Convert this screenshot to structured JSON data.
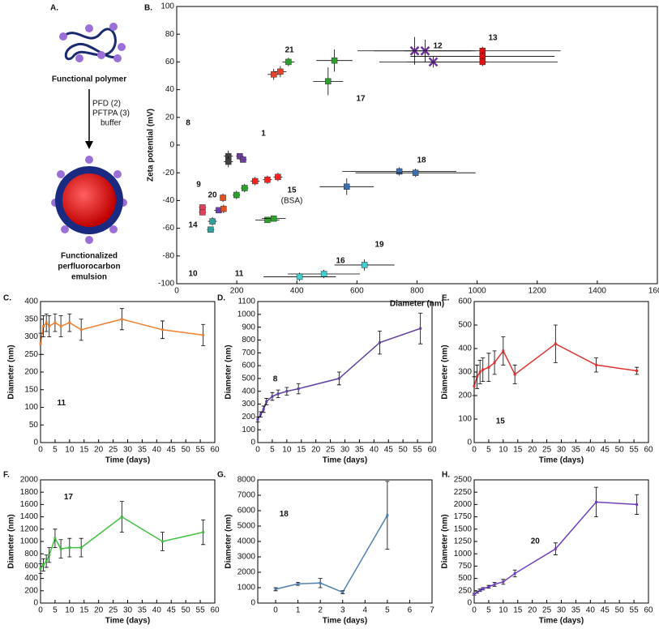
{
  "diagram": {
    "label": "A.",
    "top_text": "Functional polymer",
    "step_lines": [
      "PFD (2)",
      "PFTPA (3)",
      "buffer"
    ],
    "bottom_lines": [
      "Functionalized",
      "perfluorocarbon",
      "emulsion"
    ]
  },
  "chart_data": [
    {
      "type": "scatter",
      "title": "B.",
      "xlabel": "Diameter (nm)",
      "ylabel": "Zeta potential (mV)",
      "xlim": [
        0,
        1600
      ],
      "ylim": [
        -100,
        100
      ],
      "xticks": [
        0,
        200,
        400,
        600,
        800,
        1000,
        1200,
        1400,
        1600
      ],
      "yticks": [
        -100,
        -80,
        -60,
        -40,
        -20,
        0,
        20,
        40,
        60,
        80,
        100
      ],
      "annotations": [
        "(BSA)"
      ],
      "series": [
        {
          "name": "21",
          "color": "#e8402a",
          "marker": "square",
          "x": [
            323,
            345
          ],
          "values": [
            51,
            53
          ],
          "xerr": [
            20,
            20
          ],
          "yerr": [
            4,
            4
          ]
        },
        {
          "name": "12",
          "color": "#7030a0",
          "marker": "x",
          "x": [
            792,
            827,
            854
          ],
          "values": [
            68,
            68,
            60
          ],
          "xerr": [
            190,
            170,
            180
          ],
          "yerr": [
            10,
            8,
            4
          ]
        },
        {
          "name": "13",
          "color": "#e01010",
          "marker": "square",
          "x": [
            1018,
            1018,
            1018
          ],
          "values": [
            68,
            64,
            60
          ],
          "xerr": [
            260,
            240,
            250
          ],
          "yerr": [
            3,
            3,
            3
          ]
        },
        {
          "name": "17",
          "color": "#2ca02c",
          "marker": "square",
          "x": [
            525,
            504,
            372
          ],
          "values": [
            61,
            46,
            60
          ],
          "xerr": [
            60,
            50,
            20
          ],
          "yerr": [
            8,
            10,
            3
          ]
        },
        {
          "name": "8",
          "color": "#404040",
          "marker": "square",
          "x": [
            172,
            172
          ],
          "values": [
            -8,
            -12
          ],
          "xerr": [
            15,
            15
          ],
          "yerr": [
            4,
            4
          ]
        },
        {
          "name": "1",
          "color": "#6a3d9a",
          "marker": "square",
          "x": [
            210,
            221
          ],
          "values": [
            -8,
            -10.5
          ],
          "xerr": [
            12,
            12
          ],
          "yerr": [
            2,
            2
          ]
        },
        {
          "name": "15",
          "color": "#ff2020",
          "marker": "square",
          "x": [
            261,
            302,
            337
          ],
          "values": [
            -26,
            -25,
            -23
          ],
          "xerr": [
            15,
            15,
            15
          ],
          "yerr": [
            3,
            3,
            3
          ]
        },
        {
          "name": "9",
          "color": "#2ca02c",
          "marker": "square",
          "x": [
            226,
            199
          ],
          "values": [
            -31,
            -36
          ],
          "xerr": [
            12,
            12
          ],
          "yerr": [
            3,
            3
          ]
        },
        {
          "name": "18",
          "color": "#3a6fb0",
          "marker": "square",
          "x": [
            741,
            795,
            566
          ],
          "values": [
            -19,
            -20,
            -30
          ],
          "xerr": [
            190,
            200,
            90
          ],
          "yerr": [
            3,
            3,
            6
          ]
        },
        {
          "name": "20",
          "color": "#6a3dc0",
          "marker": "square",
          "x": [
            140
          ],
          "values": [
            -47
          ],
          "xerr": [
            15
          ],
          "yerr": [
            2
          ]
        },
        {
          "name": "14",
          "color": "#e0405a",
          "marker": "square",
          "x": [
            86,
            86
          ],
          "values": [
            -45,
            -48.5
          ],
          "xerr": [
            12,
            12
          ],
          "yerr": [
            2,
            2
          ]
        },
        {
          "name": "10",
          "color": "#30a0a0",
          "marker": "square",
          "x": [
            119,
            113
          ],
          "values": [
            -55,
            -61
          ],
          "xerr": [
            15,
            12
          ],
          "yerr": [
            3,
            2
          ]
        },
        {
          "name": "11",
          "color": "#e05020",
          "marker": "square",
          "x": [
            154,
            156
          ],
          "values": [
            -38,
            -46
          ],
          "xerr": [
            10,
            10
          ],
          "yerr": [
            3,
            3
          ]
        },
        {
          "name": "16",
          "color": "#2ca02c",
          "marker": "square",
          "x": [
            302,
            323
          ],
          "values": [
            -54,
            -53
          ],
          "xerr": [
            40,
            40
          ],
          "yerr": [
            2,
            2
          ]
        },
        {
          "name": "19",
          "color": "#40d0d0",
          "marker": "square",
          "x": [
            625,
            490,
            409
          ],
          "values": [
            -86.5,
            -93,
            -95
          ],
          "xerr": [
            100,
            120,
            120
          ],
          "yerr": [
            4,
            3,
            3
          ]
        }
      ]
    },
    {
      "type": "line",
      "title": "C.",
      "xlabel": "Time (days)",
      "ylabel": "Diameter (nm)",
      "xlim": [
        0,
        60
      ],
      "ylim": [
        0,
        400
      ],
      "xticks": [
        0,
        5,
        10,
        15,
        20,
        25,
        30,
        35,
        40,
        45,
        50,
        55,
        60
      ],
      "yticks": [
        0,
        50,
        100,
        150,
        200,
        250,
        300,
        350,
        400
      ],
      "color": "#f07f30",
      "annotations": [
        "11"
      ],
      "x": [
        0,
        1,
        2,
        3,
        5,
        7,
        10,
        14,
        28,
        42,
        56
      ],
      "values": [
        280,
        330,
        340,
        330,
        340,
        330,
        340,
        320,
        350,
        320,
        305
      ],
      "errors": [
        30,
        30,
        25,
        30,
        25,
        30,
        25,
        30,
        30,
        25,
        30
      ]
    },
    {
      "type": "line",
      "title": "D.",
      "xlabel": "Time (days)",
      "ylabel": "Diameter (nm)",
      "xlim": [
        0,
        60
      ],
      "ylim": [
        0,
        1100
      ],
      "xticks": [
        0,
        5,
        10,
        15,
        20,
        25,
        30,
        35,
        40,
        45,
        50,
        55,
        60
      ],
      "yticks": [
        0,
        100,
        200,
        300,
        400,
        500,
        600,
        700,
        800,
        900,
        1000,
        1100
      ],
      "color": "#6040a0",
      "annotations": [
        "8"
      ],
      "x": [
        0,
        1,
        2,
        3,
        5,
        7,
        10,
        14,
        28,
        42,
        56
      ],
      "values": [
        180,
        220,
        260,
        320,
        360,
        380,
        400,
        420,
        500,
        780,
        890
      ],
      "errors": [
        20,
        20,
        25,
        25,
        30,
        30,
        30,
        40,
        50,
        90,
        120
      ]
    },
    {
      "type": "line",
      "title": "E.",
      "xlabel": "Time (days)",
      "ylabel": "Diameter (nm)",
      "xlim": [
        0,
        60
      ],
      "ylim": [
        0,
        600
      ],
      "xticks": [
        0,
        5,
        10,
        15,
        20,
        25,
        30,
        35,
        40,
        45,
        50,
        55,
        60
      ],
      "yticks": [
        0,
        100,
        200,
        300,
        400,
        500,
        600
      ],
      "color": "#e03030",
      "annotations": [
        "15"
      ],
      "x": [
        0,
        1,
        2,
        3,
        5,
        7,
        10,
        14,
        28,
        42,
        56
      ],
      "values": [
        240,
        280,
        300,
        310,
        320,
        340,
        390,
        290,
        420,
        330,
        305
      ],
      "errors": [
        40,
        50,
        50,
        50,
        60,
        50,
        60,
        40,
        80,
        30,
        15
      ]
    },
    {
      "type": "line",
      "title": "F.",
      "xlabel": "Time (days)",
      "ylabel": "Diameter (nm)",
      "xlim": [
        0,
        60
      ],
      "ylim": [
        0,
        2000
      ],
      "xticks": [
        0,
        5,
        10,
        15,
        20,
        25,
        30,
        35,
        40,
        45,
        50,
        55,
        60
      ],
      "yticks": [
        0,
        200,
        400,
        600,
        800,
        1000,
        1200,
        1400,
        1600,
        1800,
        2000
      ],
      "color": "#40c040",
      "annotations": [
        "17"
      ],
      "x": [
        0,
        1,
        2,
        3,
        5,
        7,
        10,
        14,
        28,
        42,
        56
      ],
      "values": [
        560,
        620,
        680,
        780,
        1050,
        880,
        900,
        900,
        1400,
        1000,
        1150
      ],
      "errors": [
        80,
        100,
        100,
        120,
        150,
        150,
        150,
        150,
        250,
        150,
        200
      ]
    },
    {
      "type": "line",
      "title": "G.",
      "xlabel": "Time (days)",
      "ylabel": "Diameter (nm)",
      "xlim": [
        -0.8,
        7
      ],
      "ylim": [
        0,
        8000
      ],
      "xticks": [
        0,
        1,
        2,
        3,
        4,
        5,
        6,
        7
      ],
      "yticks": [
        0,
        1000,
        2000,
        3000,
        4000,
        5000,
        6000,
        7000,
        8000
      ],
      "color": "#5080b0",
      "annotations": [
        "18"
      ],
      "x": [
        0,
        1,
        2,
        3,
        5
      ],
      "values": [
        900,
        1250,
        1300,
        700,
        5700
      ],
      "errors": [
        100,
        100,
        300,
        100,
        2200
      ]
    },
    {
      "type": "line",
      "title": "H.",
      "xlabel": "Time (days)",
      "ylabel": "Diameter (nm)",
      "xlim": [
        0,
        60
      ],
      "ylim": [
        0,
        2500
      ],
      "xticks": [
        0,
        5,
        10,
        15,
        20,
        25,
        30,
        35,
        40,
        45,
        50,
        55,
        60
      ],
      "yticks": [
        0,
        250,
        500,
        750,
        1000,
        1250,
        1500,
        1750,
        2000,
        2250,
        2500
      ],
      "color": "#7040c0",
      "annotations": [
        "20"
      ],
      "x": [
        0,
        1,
        2,
        3,
        5,
        7,
        10,
        14,
        28,
        42,
        56
      ],
      "values": [
        180,
        220,
        260,
        290,
        330,
        380,
        430,
        600,
        1100,
        2050,
        2000
      ],
      "errors": [
        20,
        20,
        25,
        25,
        30,
        40,
        50,
        70,
        120,
        300,
        200
      ]
    }
  ]
}
